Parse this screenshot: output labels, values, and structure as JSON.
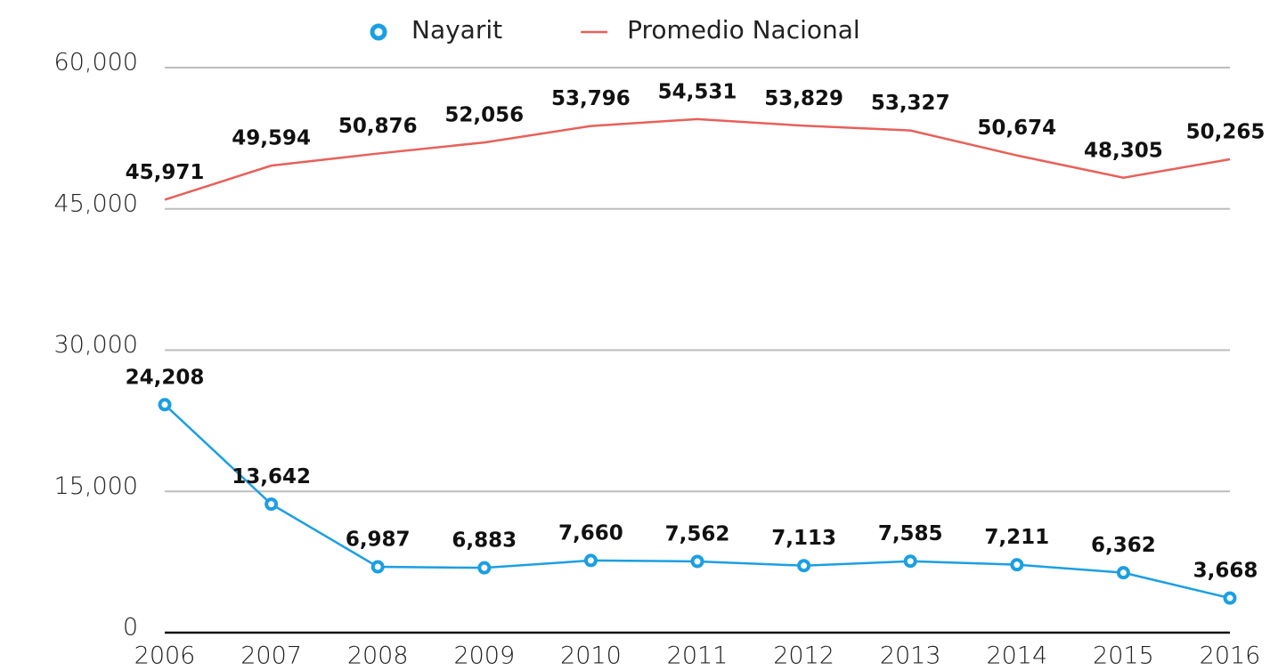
{
  "chart_data": {
    "type": "line",
    "categories": [
      "2006",
      "2007",
      "2008",
      "2009",
      "2010",
      "2011",
      "2012",
      "2013",
      "2014",
      "2015",
      "2016"
    ],
    "series": [
      {
        "name": "Nayarit",
        "color": "#1a9fe3",
        "marker": "circle",
        "values": [
          24208,
          13642,
          6987,
          6883,
          7660,
          7562,
          7113,
          7585,
          7211,
          6362,
          3668
        ],
        "value_labels": [
          "24,208",
          "13,642",
          "6,987",
          "6,883",
          "7,660",
          "7,562",
          "7,113",
          "7,585",
          "7,211",
          "6,362",
          "3,668"
        ]
      },
      {
        "name": "Promedio Nacional",
        "color": "#e8605a",
        "values": [
          45971,
          49594,
          50876,
          52056,
          53796,
          54531,
          53829,
          53327,
          50674,
          48305,
          50265
        ],
        "value_labels": [
          "45,971",
          "49,594",
          "50,876",
          "52,056",
          "53,796",
          "54,531",
          "53,829",
          "53,327",
          "50,674",
          "48,305",
          "50,265"
        ]
      }
    ],
    "ylim": [
      0,
      60000
    ],
    "yticks": [
      0,
      {
        "value": 15000,
        "label": "15,000"
      },
      {
        "value": 30000,
        "label": "30,000"
      },
      {
        "value": 45000,
        "label": "45,000"
      },
      {
        "value": 60000,
        "label": "60,000"
      }
    ],
    "grid": true,
    "legend": "top"
  }
}
